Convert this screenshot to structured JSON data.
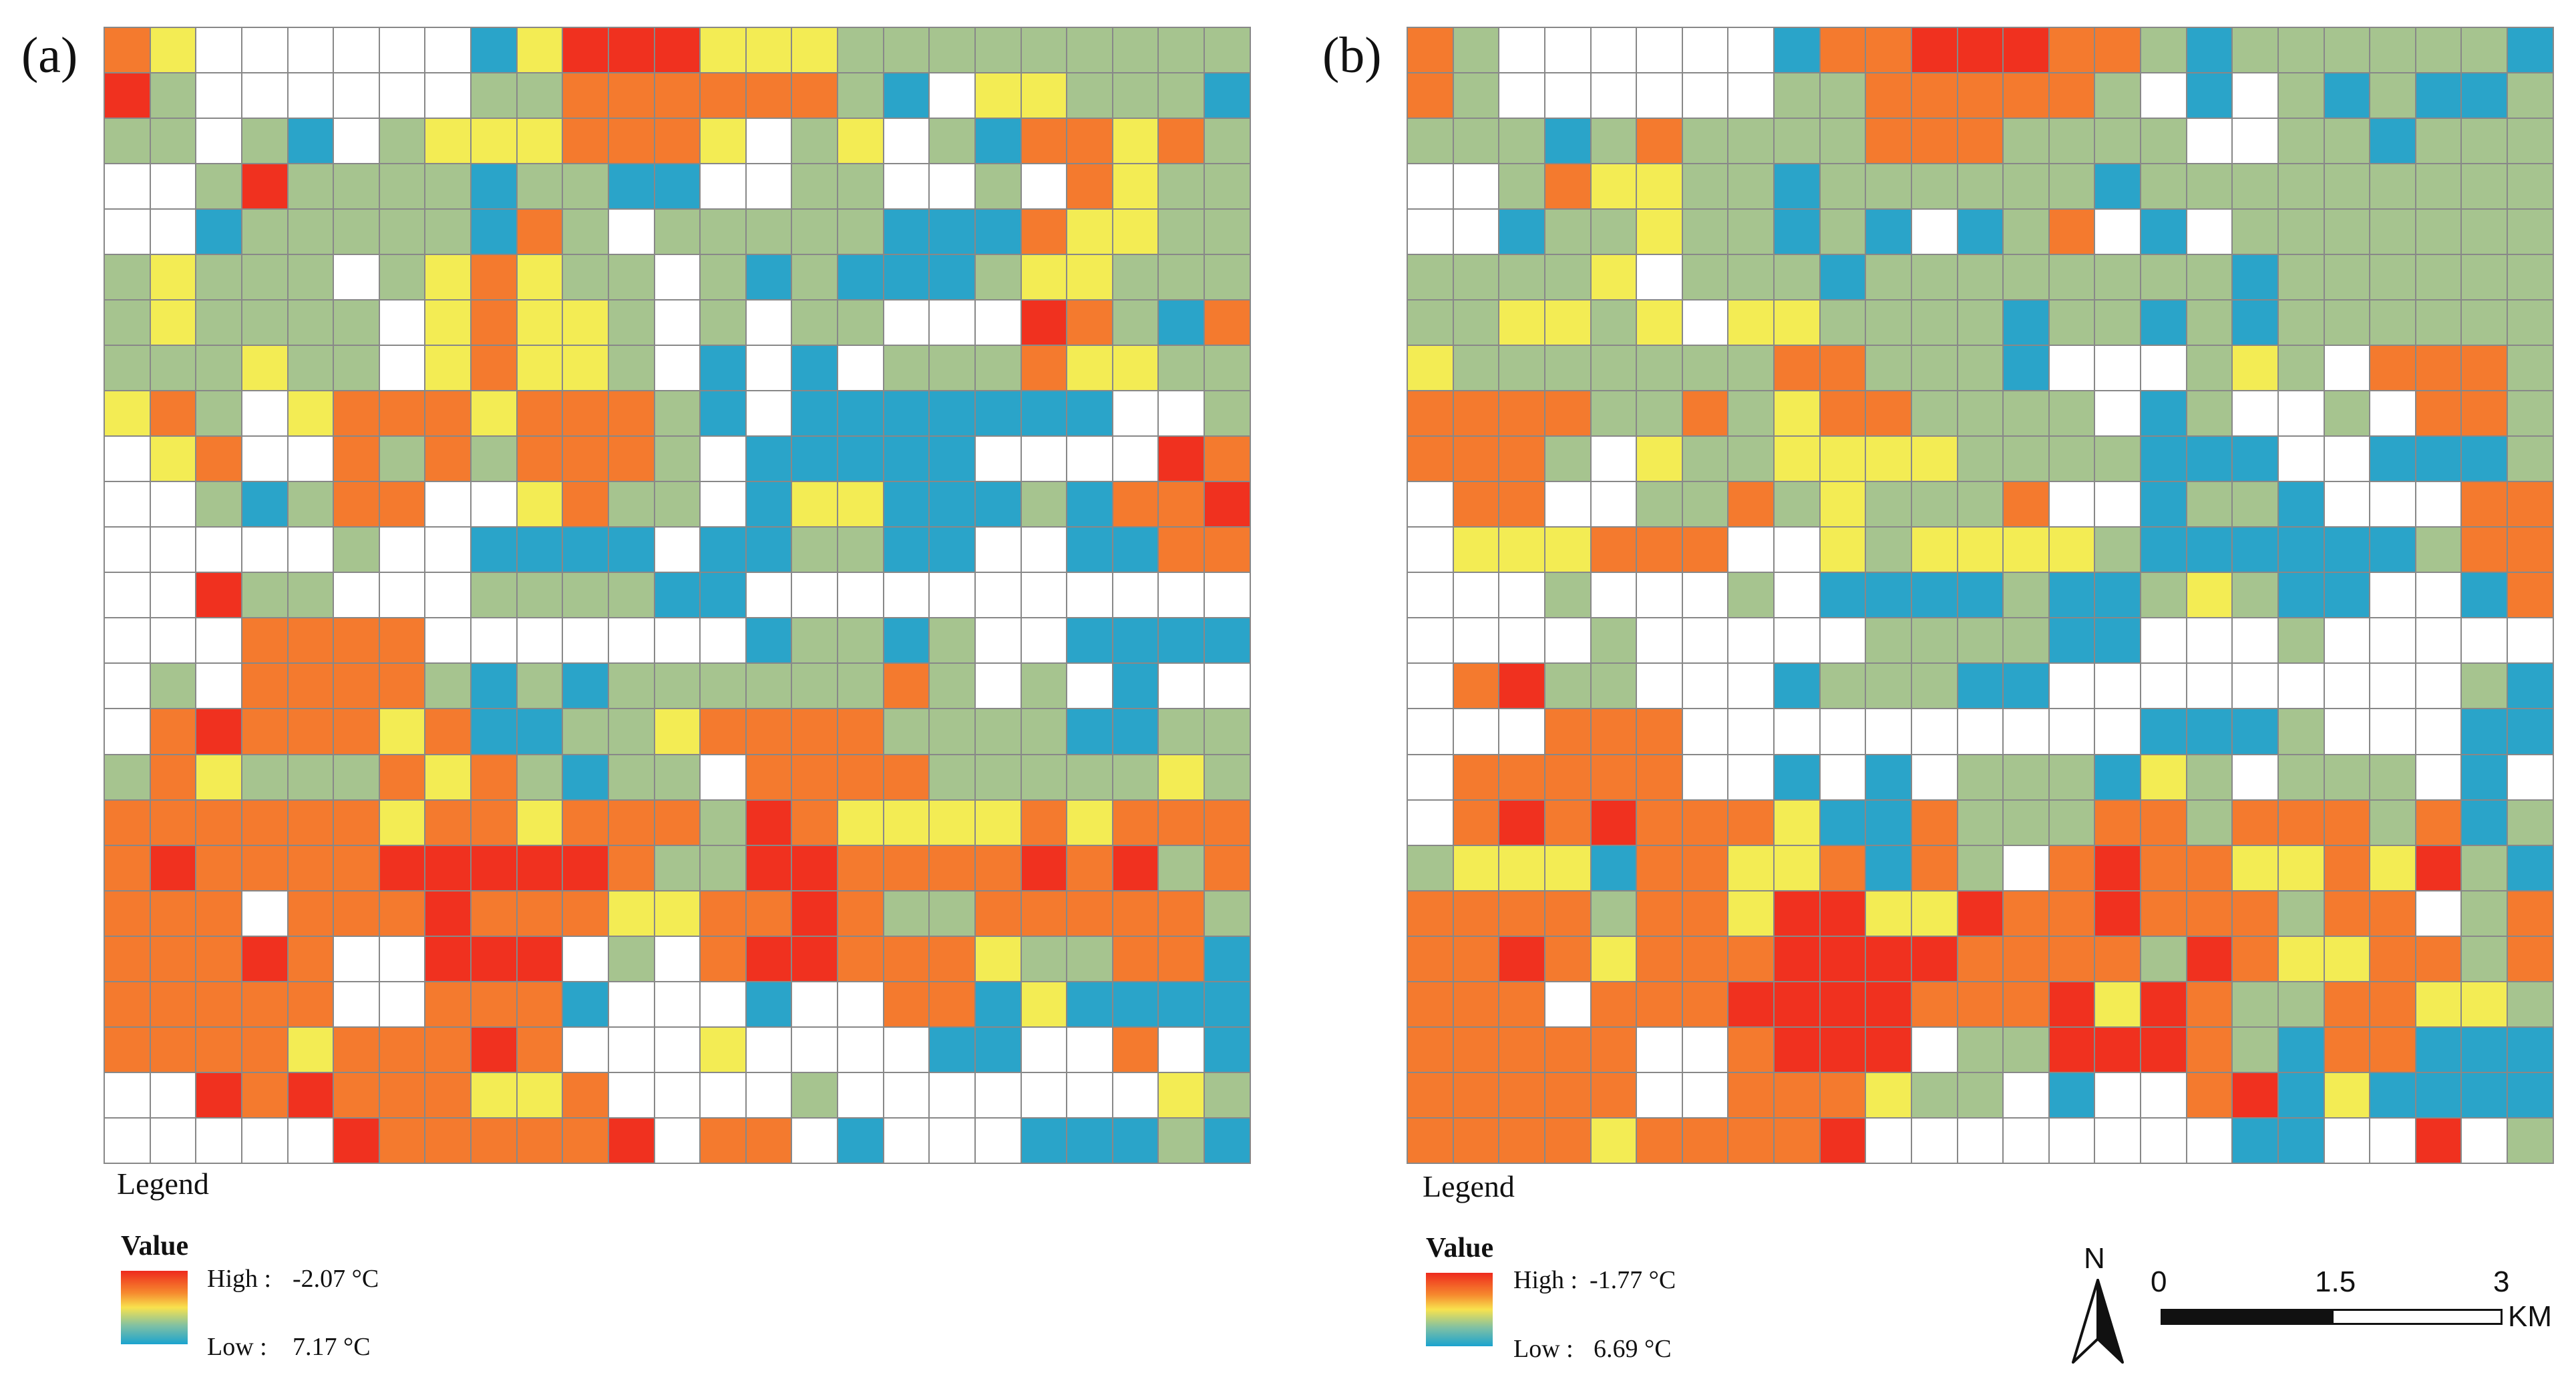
{
  "panels": [
    {
      "label": "(a)",
      "legend_title": "Legend",
      "value_title": "Value",
      "high_label": "High :",
      "high_value": "-2.07 °C",
      "low_label": "Low :",
      "low_value": "7.17 °C",
      "rows": [
        "OYWWWWWWBYRRRYYYGGGGGGGGG",
        "RGWWWWWWGGOOOOOOGBWYYGGGB",
        "GGWGBWGYYYOOOYWGYWGBOOYOG",
        "WWGRGGGGBGGBBWWGGWWGWOYGG",
        "WWBGGGGGBOGWGGGGGBBBOYYGG",
        "GYGGGWGYOYGGWGBGBBBGYYGGG",
        "GYGGGGWYOYYGWGWGGWWWROGBO",
        "GGGYGGWYOYYGWBWBWGGGOYYGG",
        "YOGWYOOOYOOOGBWBBBBBBBWWG",
        "WYOWWOGOGOOOGWBBBBBWWWWRO",
        "WWGBGOOWWYOGGWBYYBBBGBOOR",
        "WWWWWGWWBBBBWBBGGBBWWBBOO",
        "WWRGGWWWGGGGBBWWWWWWWWWWW",
        "WWWOOOOWWWWWWWBGGBGWWBBBB",
        "WGWOOOOGBGBGGGGGGOGWGWBWW",
        "WOROOOYOBBGGYOOOOGGGGBBGG",
        "GOYGGGOYOGBGGWOOOOGGGGGYG",
        "OOOOOOYOOYOOOGROYYYYOYOOO",
        "OROOOORRRRROGGRROOOORORGO",
        "OOOWOOOROOOYYOOROGGOOOOOG",
        "OOOROWWRRRWGWORROOOYGGOOB",
        "OOOOOWWOOOBWWWBWWOOBYBBBB",
        "OOOOYOOOROWWWYWWWWBBWWOWB",
        "WWROROOOYYOWWWWGWWWWWWWYG",
        "WWWWWROOOOORWOOWBWWWBBBGB"
      ]
    },
    {
      "label": "(b)",
      "legend_title": "Legend",
      "value_title": "Value",
      "high_label": "High :",
      "high_value": "-1.77 °C",
      "low_label": "Low :",
      "low_value": "6.69 °C",
      "rows": [
        "OGWWWWWWBOORRROOGBGGGGGGB",
        "OGWWWWWWGGOOOOOGWBWGBGBBG",
        "GGGBGOGGGGOOOGGGGWWGGBGGG",
        "WWGOYYGGBGGGGGGBGGGGGGGGG",
        "WWBGGYGGBGBWBGOWBWGGGGGGG",
        "GGGGYWGGGBGGGGGGGGBGGGGGG",
        "GGYYGYWYYGGGGBGGBGBGGGGGG",
        "YGGGGGGGOOGGGBWWWGYGWOOOG",
        "OOOOGGOGYOOGGGGWBGWWGWOOG",
        "OOOGWYGGYYYYGGGGBBBWWBBBG",
        "WOOWWGGOGYGGGOWWBGGBWWWOO",
        "WYYYOOOWWYGYYYYGBBBBBBGOO",
        "WWWGWWWGWBBBBGBBGYGBBWWBO",
        "WWWWGWWWWWGGGGBBWWWGWWWWW",
        "WORGGWWWBGGGBBWWWWWWWWWGB",
        "WWWOOOWWWWWWWWWWBBBGWWWBB",
        "WOOOOOWWBWBWGGGBYGWGGGWBW",
        "WOROROOOYBBOGGGOOGOOOGOBG",
        "GYYYBOOYYOBOGWOROOYYOYRGB",
        "OOOOGOOYRRYYROOROOOGOOWGO",
        "OOROYOOORRRROOOOGROYYOOGO",
        "OOOWOOORRRROOORYROGGOOYYG",
        "OOOOOWWORRRWGGRRROGBOOBBB",
        "OOOOOWWOOOYGGWBWWORBYBBBB",
        "OOOOYOOOORWWWWWWWWBBWWRWG"
      ]
    }
  ],
  "color_key": {
    "W": "#ffffff",
    "R": "#f0311f",
    "O": "#f47a2e",
    "Y": "#f3ec54",
    "G": "#a6c48f",
    "B": "#2aa4c9"
  },
  "north_label": "N",
  "scalebar": {
    "ticks": [
      "0",
      "1.5",
      "3"
    ],
    "unit": "KM"
  }
}
